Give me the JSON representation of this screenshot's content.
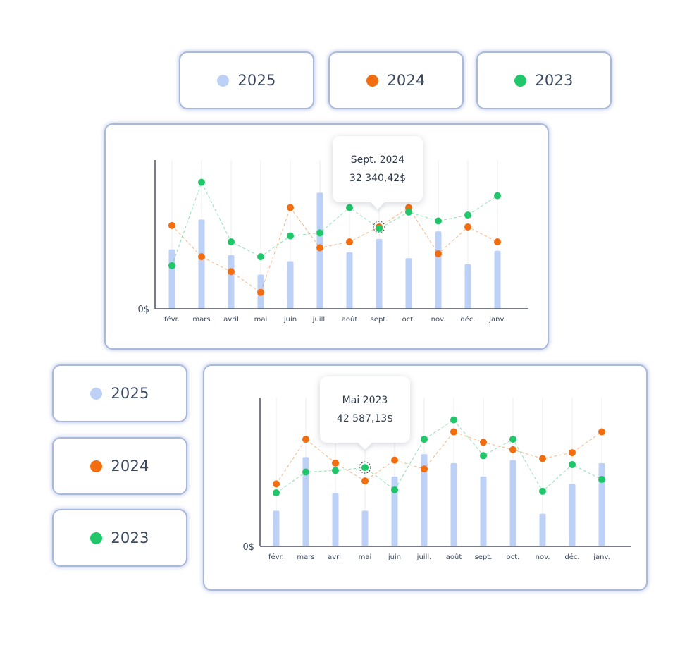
{
  "colors": {
    "c2025": "#bdd0f6",
    "c2024": "#f26d0f",
    "c2023": "#1fc66a"
  },
  "legend": [
    {
      "label": "2025",
      "color": "#bdd0f6"
    },
    {
      "label": "2024",
      "color": "#f26d0f"
    },
    {
      "label": "2023",
      "color": "#1fc66a"
    }
  ],
  "chart_data": [
    {
      "type": "bar",
      "categories": [
        "févr.",
        "mars",
        "avril",
        "mai",
        "juin",
        "juill.",
        "août",
        "sept.",
        "oct.",
        "nov.",
        "déc.",
        "janv."
      ],
      "y_label_zero": "0$",
      "ylim": [
        0,
        100
      ],
      "grid": "vertical",
      "series": [
        {
          "name": "2025",
          "kind": "bar",
          "color": "#bdd0f6",
          "values": [
            40,
            60,
            36,
            23,
            32,
            78,
            38,
            47,
            34,
            52,
            30,
            39
          ]
        },
        {
          "name": "2024",
          "kind": "line-dashed",
          "color": "#f26d0f",
          "values": [
            56,
            35,
            25,
            11,
            68,
            41,
            45,
            55,
            68,
            37,
            55,
            45
          ]
        },
        {
          "name": "2023",
          "kind": "line-dashed",
          "color": "#1fc66a",
          "values": [
            29,
            85,
            45,
            35,
            49,
            51,
            68,
            54,
            65,
            59,
            63,
            76
          ]
        }
      ],
      "tooltip": {
        "title": "Sept. 2024",
        "value": "32 340,42$",
        "category": "sept.",
        "series": "2024"
      }
    },
    {
      "type": "bar",
      "categories": [
        "févr.",
        "mars",
        "avril",
        "mai",
        "juin",
        "juill.",
        "août",
        "sept.",
        "oct.",
        "nov.",
        "déc.",
        "janv."
      ],
      "y_label_zero": "0$",
      "ylim": [
        0,
        100
      ],
      "grid": "vertical",
      "series": [
        {
          "name": "2025",
          "kind": "bar",
          "color": "#bdd0f6",
          "values": [
            24,
            60,
            36,
            24,
            47,
            62,
            56,
            47,
            58,
            22,
            42,
            56
          ]
        },
        {
          "name": "2024",
          "kind": "line-dashed",
          "color": "#f26d0f",
          "values": [
            42,
            72,
            56,
            44,
            58,
            52,
            77,
            70,
            65,
            59,
            63,
            77
          ]
        },
        {
          "name": "2023",
          "kind": "line-dashed",
          "color": "#1fc66a",
          "values": [
            36,
            50,
            51,
            53,
            38,
            72,
            85,
            61,
            72,
            37,
            55,
            45
          ]
        }
      ],
      "tooltip": {
        "title": "Mai 2023",
        "value": "42 587,13$",
        "category": "mai",
        "series": "2023"
      }
    }
  ]
}
